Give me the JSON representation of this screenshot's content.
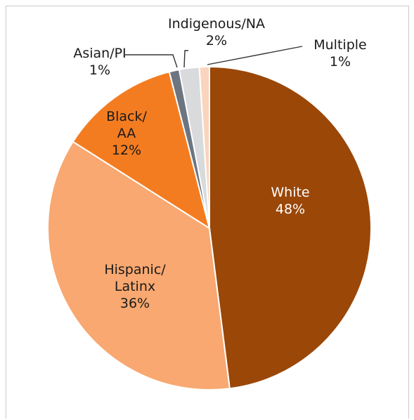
{
  "chart_data": {
    "type": "pie",
    "title": "",
    "start_angle_deg": 0,
    "direction": "clockwise",
    "slices": [
      {
        "label": "White",
        "value": 48,
        "value_label": "48%",
        "color": "#9a4708",
        "text_color": "#ffffff"
      },
      {
        "label": "Hispanic/\nLatinx",
        "value": 36,
        "value_label": "36%",
        "color": "#f8a870",
        "text_color": "#1a1a1a"
      },
      {
        "label": "Black/\nAA",
        "value": 12,
        "value_label": "12%",
        "color": "#f47c20",
        "text_color": "#1a1a1a"
      },
      {
        "label": "Asian/PI",
        "value": 1,
        "value_label": "1%",
        "color": "#6d7580",
        "text_color": "#1a1a1a"
      },
      {
        "label": "Indigenous/NA",
        "value": 2,
        "value_label": "2%",
        "color": "#d9dadc",
        "text_color": "#1a1a1a"
      },
      {
        "label": "Multiple",
        "value": 1,
        "value_label": "1%",
        "color": "#fbd4bd",
        "text_color": "#1a1a1a"
      }
    ]
  }
}
